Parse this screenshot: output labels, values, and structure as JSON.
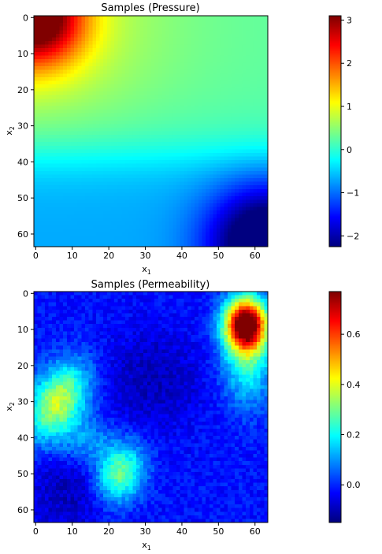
{
  "chart_data": [
    {
      "type": "heatmap",
      "title": "Samples (Pressure)",
      "xlabel": "x",
      "xlabel_sub": "1",
      "ylabel": "x",
      "ylabel_sub": "2",
      "grid_size": 64,
      "xlim": [
        -0.5,
        63.5
      ],
      "ylim": [
        63.5,
        -0.5
      ],
      "xticks": [
        0,
        10,
        20,
        30,
        40,
        50,
        60
      ],
      "yticks": [
        0,
        10,
        20,
        30,
        40,
        50,
        60
      ],
      "colormap": "jet",
      "vmin": -2.25,
      "vmax": 3.1,
      "colorbar_ticks": [
        3,
        2,
        1,
        0,
        -1,
        -2
      ],
      "colorbar_tick_labels": [
        "3",
        "2",
        "1",
        "0",
        "−1",
        "−2"
      ],
      "grid": false,
      "features": [
        {
          "desc": "high pressure corner",
          "x": 1,
          "y": 1,
          "value": 3.1
        },
        {
          "desc": "low pressure corner",
          "x": 62,
          "y": 62,
          "value": -2.2
        },
        {
          "desc": "background mid-field",
          "x": 30,
          "y": 30,
          "value": 0.2
        }
      ]
    },
    {
      "type": "heatmap",
      "title": "Samples (Permeability)",
      "xlabel": "x",
      "xlabel_sub": "1",
      "ylabel": "x",
      "ylabel_sub": "2",
      "grid_size": 64,
      "xlim": [
        -0.5,
        63.5
      ],
      "ylim": [
        63.5,
        -0.5
      ],
      "xticks": [
        0,
        10,
        20,
        30,
        40,
        50,
        60
      ],
      "yticks": [
        0,
        10,
        20,
        30,
        40,
        50,
        60
      ],
      "colormap": "jet",
      "vmin": -0.15,
      "vmax": 0.77,
      "colorbar_ticks": [
        0.6,
        0.4,
        0.2,
        0.0
      ],
      "colorbar_tick_labels": [
        "0.6",
        "0.4",
        "0.2",
        "0.0"
      ],
      "grid": false,
      "features": [
        {
          "desc": "high permeability blob",
          "x": 57,
          "y": 8,
          "value": 0.75
        },
        {
          "desc": "medium blob left",
          "x": 6,
          "y": 30,
          "value": 0.38
        },
        {
          "desc": "medium blob lower",
          "x": 24,
          "y": 50,
          "value": 0.32
        },
        {
          "desc": "background",
          "x": 30,
          "y": 20,
          "value": -0.05
        }
      ]
    }
  ]
}
